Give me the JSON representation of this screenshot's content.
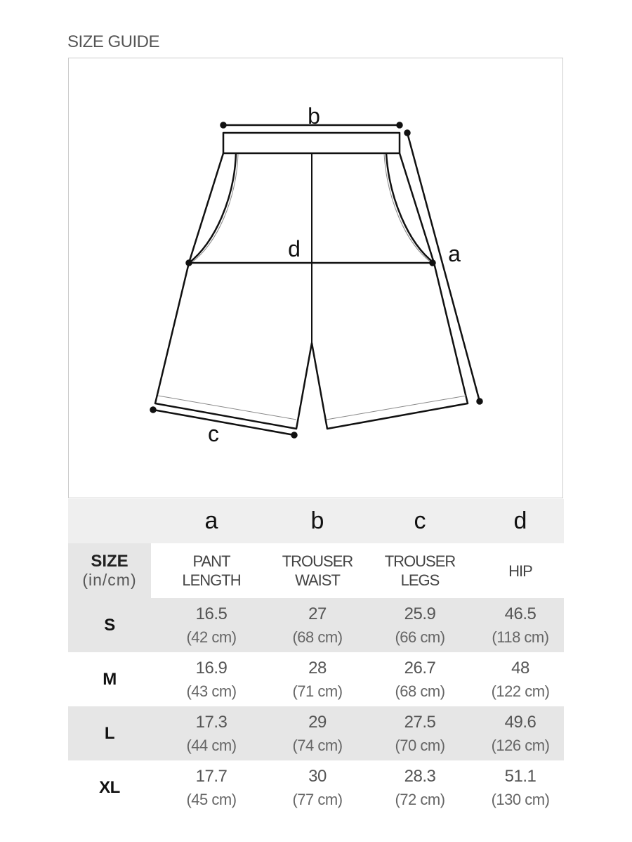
{
  "title": "SIZE GUIDE",
  "diagram": {
    "labels": {
      "a": "a",
      "b": "b",
      "c": "c",
      "d": "d"
    }
  },
  "table": {
    "letters": [
      "a",
      "b",
      "c",
      "d"
    ],
    "size_header": "SIZE",
    "unit_header": "(in/cm)",
    "columns": [
      {
        "line1": "PANT",
        "line2": "LENGTH"
      },
      {
        "line1": "TROUSER",
        "line2": "WAIST"
      },
      {
        "line1": "TROUSER",
        "line2": "LEGS"
      },
      {
        "line1": "HIP",
        "line2": ""
      }
    ],
    "rows": [
      {
        "size": "S",
        "values": [
          {
            "in": "16.5",
            "cm": "(42 cm)"
          },
          {
            "in": "27",
            "cm": "(68 cm)"
          },
          {
            "in": "25.9",
            "cm": "(66 cm)"
          },
          {
            "in": "46.5",
            "cm": "(118 cm)"
          }
        ]
      },
      {
        "size": "M",
        "values": [
          {
            "in": "16.9",
            "cm": "(43 cm)"
          },
          {
            "in": "28",
            "cm": "(71 cm)"
          },
          {
            "in": "26.7",
            "cm": "(68 cm)"
          },
          {
            "in": "48",
            "cm": "(122 cm)"
          }
        ]
      },
      {
        "size": "L",
        "values": [
          {
            "in": "17.3",
            "cm": "(44 cm)"
          },
          {
            "in": "29",
            "cm": "(74 cm)"
          },
          {
            "in": "27.5",
            "cm": "(70 cm)"
          },
          {
            "in": "49.6",
            "cm": "(126 cm)"
          }
        ]
      },
      {
        "size": "XL",
        "values": [
          {
            "in": "17.7",
            "cm": "(45 cm)"
          },
          {
            "in": "30",
            "cm": "(77 cm)"
          },
          {
            "in": "28.3",
            "cm": "(72 cm)"
          },
          {
            "in": "51.1",
            "cm": "(130 cm)"
          }
        ]
      }
    ]
  }
}
